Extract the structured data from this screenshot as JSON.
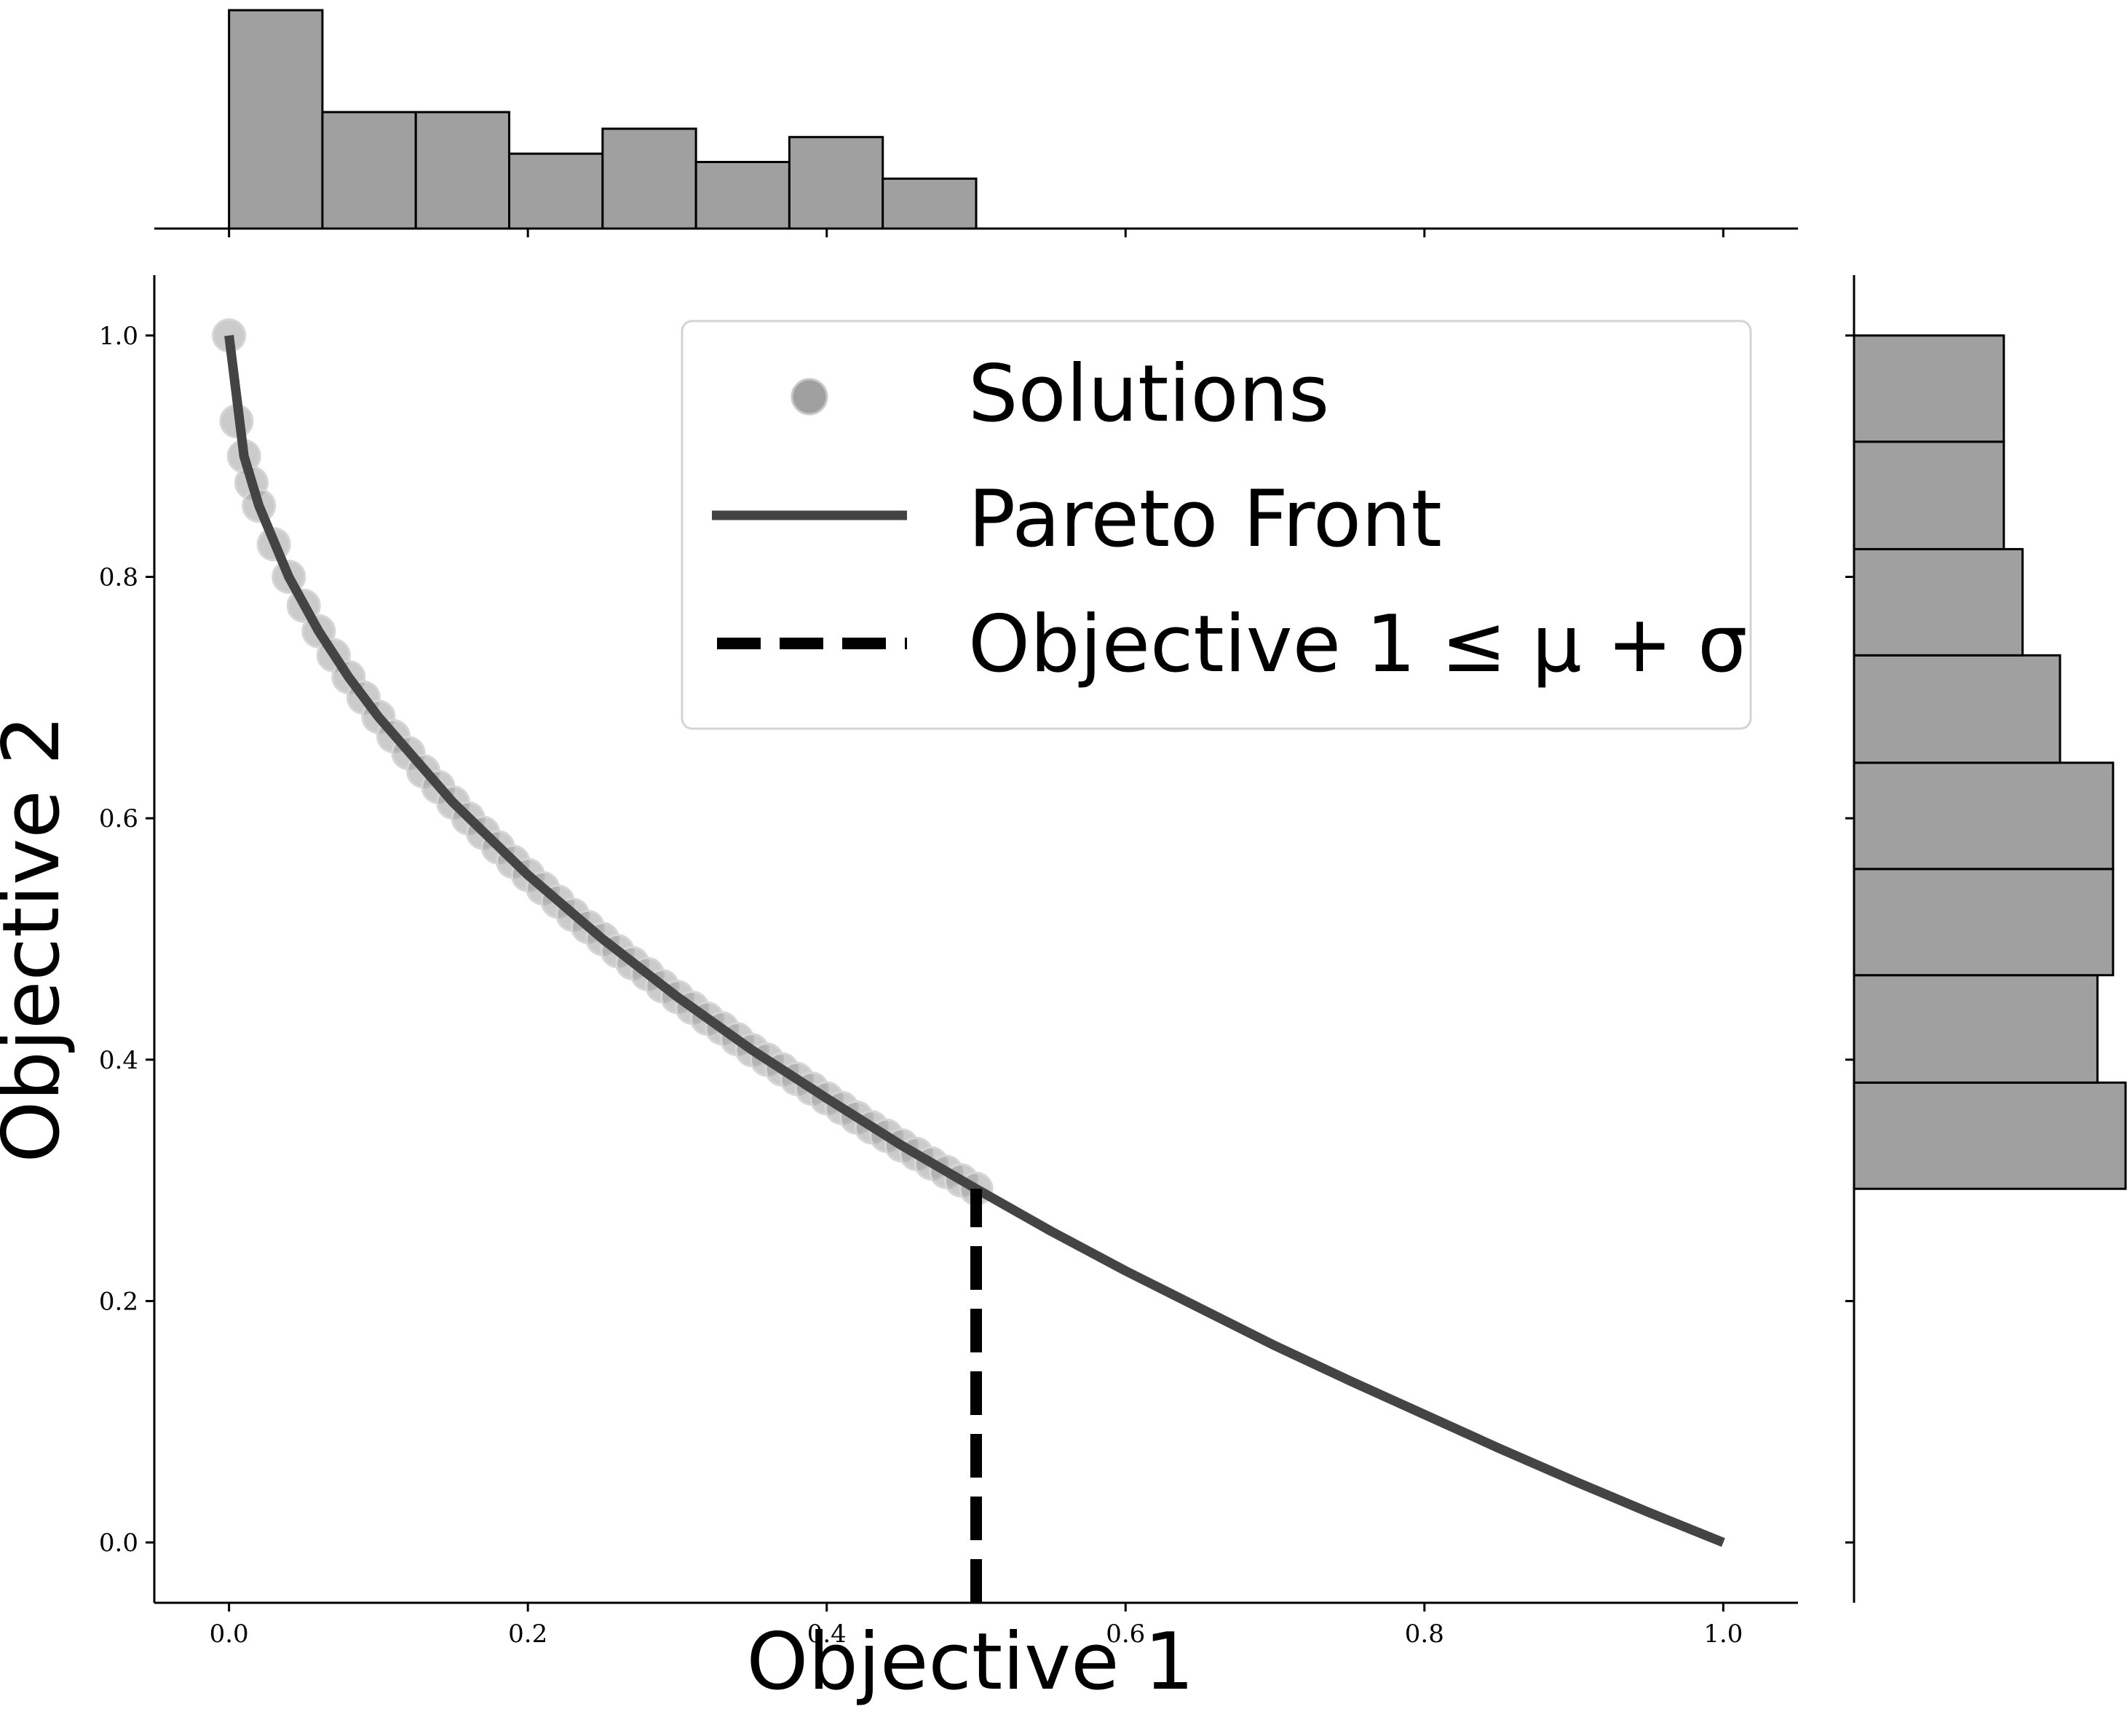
{
  "chart_data": [
    {
      "type": "scatter",
      "role": "main",
      "xlabel": "Objective 1",
      "ylabel": "Objective 2",
      "xlim": [
        -0.05,
        1.05
      ],
      "ylim": [
        -0.05,
        1.05
      ],
      "xticks": [
        0.0,
        0.2,
        0.4,
        0.6,
        0.8,
        1.0
      ],
      "yticks": [
        0.0,
        0.2,
        0.4,
        0.6,
        0.8,
        1.0
      ],
      "xtick_labels": [
        "0.0",
        "0.2",
        "0.4",
        "0.6",
        "0.8",
        "1.0"
      ],
      "ytick_labels": [
        "0.0",
        "0.2",
        "0.4",
        "0.6",
        "0.8",
        "1.0"
      ],
      "grid": false,
      "legend_position": "top-right",
      "legend": [
        {
          "label": "Solutions",
          "marker": "circle"
        },
        {
          "label": "Pareto Front",
          "marker": "line"
        },
        {
          "label": "Objective 1 ≤ μ + σ",
          "marker": "dashed-line"
        }
      ],
      "series": [
        {
          "name": "Solutions",
          "kind": "scatter",
          "color": "#a0a0a0",
          "x": [
            0.0,
            0.005,
            0.01,
            0.015,
            0.02,
            0.03,
            0.04,
            0.05,
            0.06,
            0.07,
            0.08,
            0.09,
            0.1,
            0.11,
            0.12,
            0.13,
            0.14,
            0.15,
            0.16,
            0.17,
            0.18,
            0.19,
            0.2,
            0.21,
            0.22,
            0.23,
            0.24,
            0.25,
            0.26,
            0.27,
            0.28,
            0.29,
            0.3,
            0.31,
            0.32,
            0.33,
            0.34,
            0.35,
            0.36,
            0.37,
            0.38,
            0.39,
            0.4,
            0.41,
            0.42,
            0.43,
            0.44,
            0.45,
            0.46,
            0.47,
            0.48,
            0.49,
            0.5
          ],
          "y": [
            1.0,
            0.929,
            0.9,
            0.878,
            0.859,
            0.827,
            0.8,
            0.776,
            0.755,
            0.735,
            0.717,
            0.7,
            0.684,
            0.668,
            0.654,
            0.639,
            0.626,
            0.613,
            0.6,
            0.588,
            0.576,
            0.564,
            0.553,
            0.542,
            0.531,
            0.52,
            0.51,
            0.5,
            0.49,
            0.48,
            0.471,
            0.461,
            0.452,
            0.443,
            0.434,
            0.426,
            0.417,
            0.408,
            0.4,
            0.392,
            0.384,
            0.376,
            0.368,
            0.36,
            0.352,
            0.344,
            0.337,
            0.329,
            0.322,
            0.314,
            0.307,
            0.3,
            0.293
          ]
        },
        {
          "name": "Pareto Front",
          "kind": "line",
          "color": "#444444",
          "x": [
            0.0,
            0.01,
            0.02,
            0.04,
            0.06,
            0.08,
            0.1,
            0.15,
            0.2,
            0.25,
            0.3,
            0.35,
            0.4,
            0.45,
            0.5,
            0.55,
            0.6,
            0.65,
            0.7,
            0.75,
            0.8,
            0.85,
            0.9,
            0.95,
            1.0
          ],
          "y": [
            1.0,
            0.9,
            0.859,
            0.8,
            0.755,
            0.717,
            0.684,
            0.613,
            0.553,
            0.5,
            0.452,
            0.408,
            0.368,
            0.329,
            0.293,
            0.258,
            0.225,
            0.194,
            0.163,
            0.134,
            0.106,
            0.078,
            0.051,
            0.025,
            0.0
          ]
        },
        {
          "name": "Objective 1 ≤ μ + σ",
          "kind": "dashed-line",
          "color": "#000000",
          "x": [
            0.5,
            0.5
          ],
          "y": [
            -0.05,
            0.293
          ]
        }
      ]
    },
    {
      "type": "bar",
      "role": "top-marginal-histogram",
      "orientation": "vertical",
      "color": "#a0a0a0",
      "bin_edges": [
        0.0,
        0.0625,
        0.125,
        0.1875,
        0.25,
        0.3125,
        0.375,
        0.4375,
        0.5
      ],
      "values": [
        10.5,
        5.6,
        5.6,
        3.6,
        4.8,
        3.2,
        4.4,
        2.4
      ]
    },
    {
      "type": "bar",
      "role": "right-marginal-histogram",
      "orientation": "horizontal",
      "color": "#a0a0a0",
      "bin_edges": [
        0.293,
        0.381,
        0.47,
        0.558,
        0.646,
        0.735,
        0.823,
        0.912,
        1.0
      ],
      "values": [
        8.7,
        7.8,
        8.3,
        8.3,
        6.6,
        5.4,
        4.8,
        4.8
      ]
    }
  ]
}
